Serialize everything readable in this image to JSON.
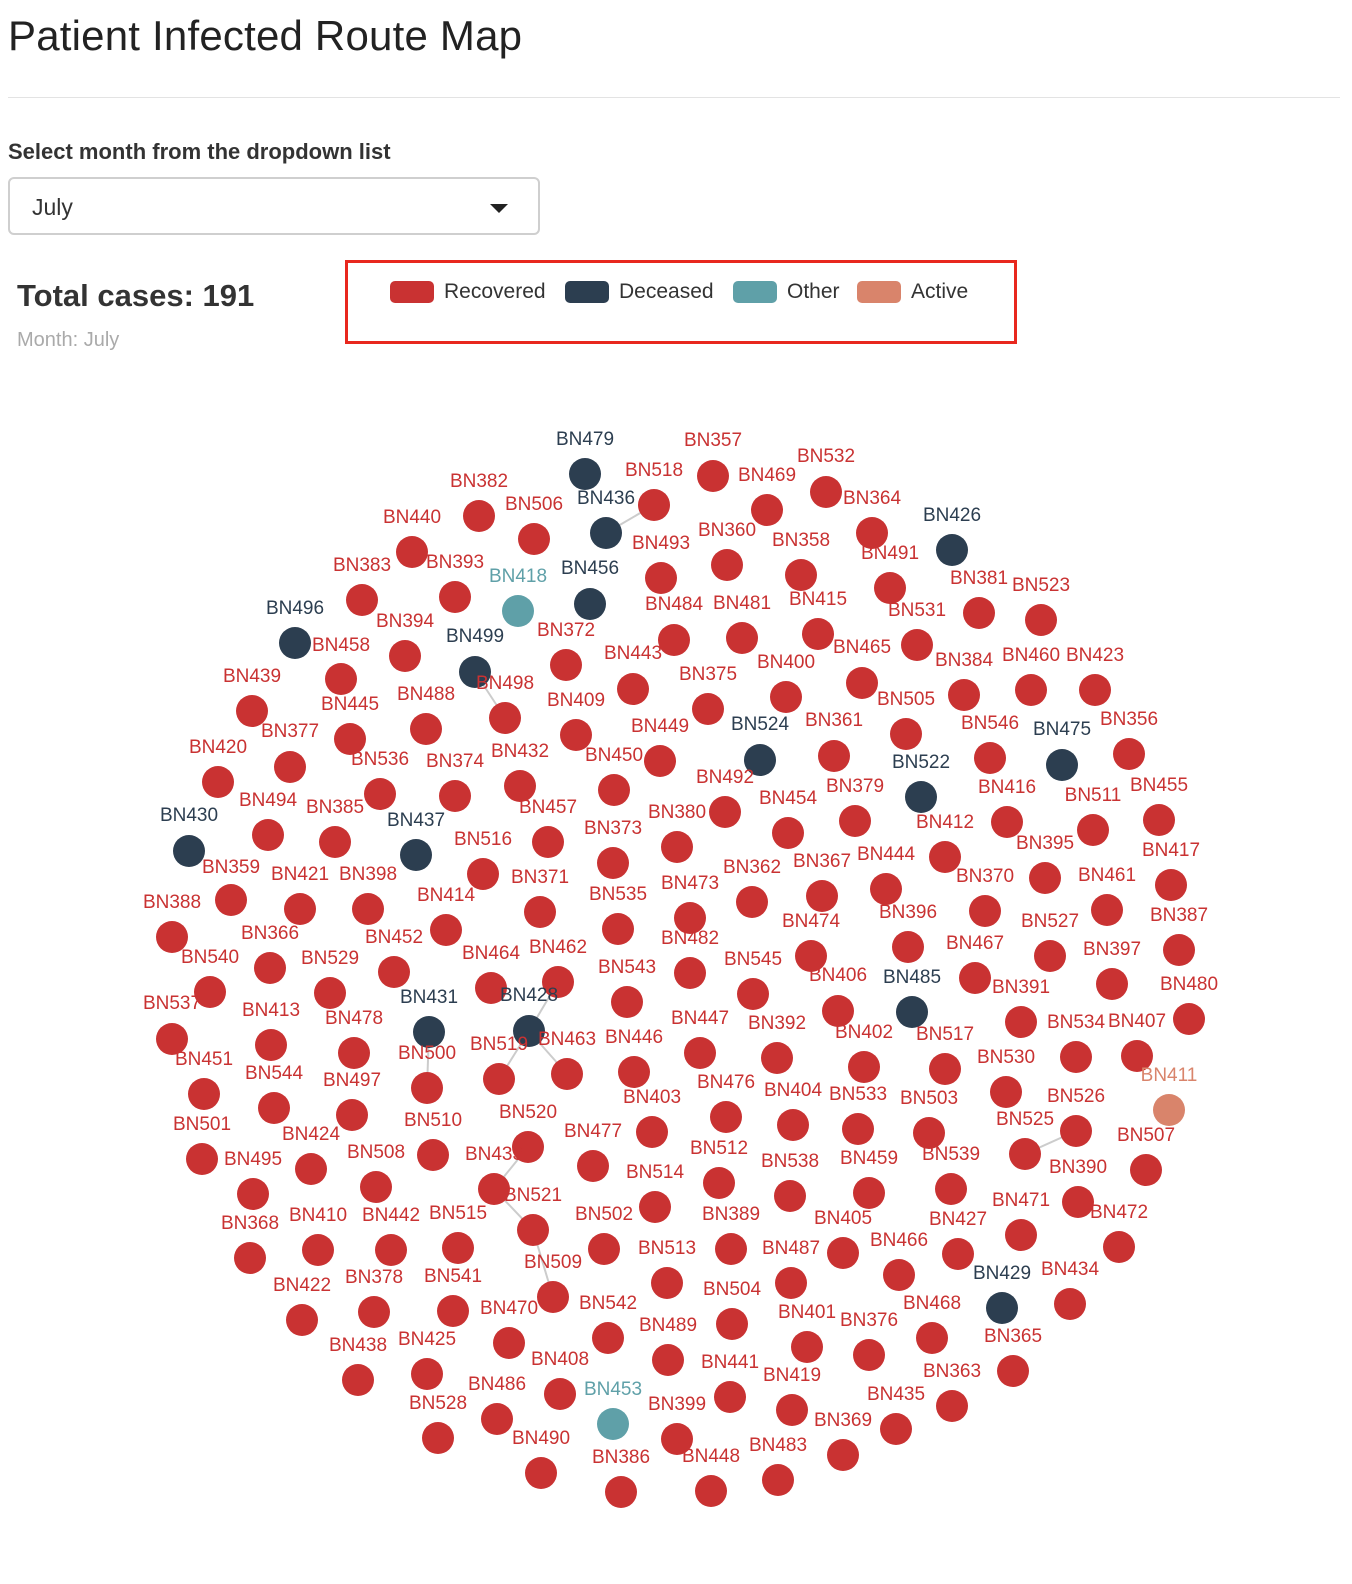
{
  "page": {
    "title": "Patient Infected Route Map",
    "dropdown_label": "Select month from the dropdown list",
    "selected_month": "July"
  },
  "summary": {
    "total_cases": "Total cases: 191",
    "month_caption": "Month: July"
  },
  "legend": [
    {
      "label": "Recovered",
      "color": "#c93232"
    },
    {
      "label": "Deceased",
      "color": "#2c3e50"
    },
    {
      "label": "Other",
      "color": "#5fa0a8"
    },
    {
      "label": "Active",
      "color": "#d9846b"
    }
  ],
  "network": {
    "nodes": [
      {
        "id": "BN479",
        "status": "Deceased"
      },
      {
        "id": "BN357",
        "status": "Recovered"
      },
      {
        "id": "BN532",
        "status": "Recovered"
      },
      {
        "id": "BN518",
        "status": "Recovered"
      },
      {
        "id": "BN469",
        "status": "Recovered"
      },
      {
        "id": "BN382",
        "status": "Recovered"
      },
      {
        "id": "BN506",
        "status": "Recovered"
      },
      {
        "id": "BN436",
        "status": "Deceased"
      },
      {
        "id": "BN364",
        "status": "Recovered"
      },
      {
        "id": "BN440",
        "status": "Recovered"
      },
      {
        "id": "BN426",
        "status": "Deceased"
      },
      {
        "id": "BN493",
        "status": "Recovered"
      },
      {
        "id": "BN360",
        "status": "Recovered"
      },
      {
        "id": "BN358",
        "status": "Recovered"
      },
      {
        "id": "BN491",
        "status": "Recovered"
      },
      {
        "id": "BN383",
        "status": "Recovered"
      },
      {
        "id": "BN393",
        "status": "Recovered"
      },
      {
        "id": "BN418",
        "status": "Other"
      },
      {
        "id": "BN456",
        "status": "Deceased"
      },
      {
        "id": "BN381",
        "status": "Recovered"
      },
      {
        "id": "BN523",
        "status": "Recovered"
      },
      {
        "id": "BN496",
        "status": "Deceased"
      },
      {
        "id": "BN484",
        "status": "Recovered"
      },
      {
        "id": "BN481",
        "status": "Recovered"
      },
      {
        "id": "BN415",
        "status": "Recovered"
      },
      {
        "id": "BN531",
        "status": "Recovered"
      },
      {
        "id": "BN394",
        "status": "Recovered"
      },
      {
        "id": "BN372",
        "status": "Recovered"
      },
      {
        "id": "BN499",
        "status": "Deceased"
      },
      {
        "id": "BN458",
        "status": "Recovered"
      },
      {
        "id": "BN443",
        "status": "Recovered"
      },
      {
        "id": "BN465",
        "status": "Recovered"
      },
      {
        "id": "BN400",
        "status": "Recovered"
      },
      {
        "id": "BN384",
        "status": "Recovered"
      },
      {
        "id": "BN460",
        "status": "Recovered"
      },
      {
        "id": "BN423",
        "status": "Recovered"
      },
      {
        "id": "BN439",
        "status": "Recovered"
      },
      {
        "id": "BN498",
        "status": "Recovered"
      },
      {
        "id": "BN375",
        "status": "Recovered"
      },
      {
        "id": "BN488",
        "status": "Recovered"
      },
      {
        "id": "BN445",
        "status": "Recovered"
      },
      {
        "id": "BN409",
        "status": "Recovered"
      },
      {
        "id": "BN505",
        "status": "Recovered"
      },
      {
        "id": "BN377",
        "status": "Recovered"
      },
      {
        "id": "BN449",
        "status": "Recovered"
      },
      {
        "id": "BN524",
        "status": "Deceased"
      },
      {
        "id": "BN361",
        "status": "Recovered"
      },
      {
        "id": "BN546",
        "status": "Recovered"
      },
      {
        "id": "BN475",
        "status": "Deceased"
      },
      {
        "id": "BN356",
        "status": "Recovered"
      },
      {
        "id": "BN420",
        "status": "Recovered"
      },
      {
        "id": "BN536",
        "status": "Recovered"
      },
      {
        "id": "BN374",
        "status": "Recovered"
      },
      {
        "id": "BN432",
        "status": "Recovered"
      },
      {
        "id": "BN450",
        "status": "Recovered"
      },
      {
        "id": "BN522",
        "status": "Deceased"
      },
      {
        "id": "BN492",
        "status": "Recovered"
      },
      {
        "id": "BN379",
        "status": "Recovered"
      },
      {
        "id": "BN416",
        "status": "Recovered"
      },
      {
        "id": "BN455",
        "status": "Recovered"
      },
      {
        "id": "BN494",
        "status": "Recovered"
      },
      {
        "id": "BN385",
        "status": "Recovered"
      },
      {
        "id": "BN457",
        "status": "Recovered"
      },
      {
        "id": "BN454",
        "status": "Recovered"
      },
      {
        "id": "BN511",
        "status": "Recovered"
      },
      {
        "id": "BN430",
        "status": "Deceased"
      },
      {
        "id": "BN437",
        "status": "Deceased"
      },
      {
        "id": "BN380",
        "status": "Recovered"
      },
      {
        "id": "BN412",
        "status": "Recovered"
      },
      {
        "id": "BN516",
        "status": "Recovered"
      },
      {
        "id": "BN373",
        "status": "Recovered"
      },
      {
        "id": "BN395",
        "status": "Recovered"
      },
      {
        "id": "BN417",
        "status": "Recovered"
      },
      {
        "id": "BN359",
        "status": "Recovered"
      },
      {
        "id": "BN444",
        "status": "Recovered"
      },
      {
        "id": "BN367",
        "status": "Recovered"
      },
      {
        "id": "BN362",
        "status": "Recovered"
      },
      {
        "id": "BN421",
        "status": "Recovered"
      },
      {
        "id": "BN398",
        "status": "Recovered"
      },
      {
        "id": "BN371",
        "status": "Recovered"
      },
      {
        "id": "BN370",
        "status": "Recovered"
      },
      {
        "id": "BN461",
        "status": "Recovered"
      },
      {
        "id": "BN414",
        "status": "Recovered"
      },
      {
        "id": "BN535",
        "status": "Recovered"
      },
      {
        "id": "BN473",
        "status": "Recovered"
      },
      {
        "id": "BN388",
        "status": "Recovered"
      },
      {
        "id": "BN396",
        "status": "Recovered"
      },
      {
        "id": "BN474",
        "status": "Recovered"
      },
      {
        "id": "BN527",
        "status": "Recovered"
      },
      {
        "id": "BN387",
        "status": "Recovered"
      },
      {
        "id": "BN366",
        "status": "Recovered"
      },
      {
        "id": "BN452",
        "status": "Recovered"
      },
      {
        "id": "BN482",
        "status": "Recovered"
      },
      {
        "id": "BN467",
        "status": "Recovered"
      },
      {
        "id": "BN540",
        "status": "Recovered"
      },
      {
        "id": "BN464",
        "status": "Recovered"
      },
      {
        "id": "BN462",
        "status": "Recovered"
      },
      {
        "id": "BN397",
        "status": "Recovered"
      },
      {
        "id": "BN529",
        "status": "Recovered"
      },
      {
        "id": "BN545",
        "status": "Recovered"
      },
      {
        "id": "BN543",
        "status": "Recovered"
      },
      {
        "id": "BN406",
        "status": "Recovered"
      },
      {
        "id": "BN485",
        "status": "Deceased"
      },
      {
        "id": "BN391",
        "status": "Recovered"
      },
      {
        "id": "BN480",
        "status": "Recovered"
      },
      {
        "id": "BN537",
        "status": "Recovered"
      },
      {
        "id": "BN413",
        "status": "Recovered"
      },
      {
        "id": "BN431",
        "status": "Deceased"
      },
      {
        "id": "BN428",
        "status": "Deceased"
      },
      {
        "id": "BN478",
        "status": "Recovered"
      },
      {
        "id": "BN447",
        "status": "Recovered"
      },
      {
        "id": "BN392",
        "status": "Recovered"
      },
      {
        "id": "BN534",
        "status": "Recovered"
      },
      {
        "id": "BN407",
        "status": "Recovered"
      },
      {
        "id": "BN463",
        "status": "Recovered"
      },
      {
        "id": "BN446",
        "status": "Recovered"
      },
      {
        "id": "BN402",
        "status": "Recovered"
      },
      {
        "id": "BN517",
        "status": "Recovered"
      },
      {
        "id": "BN500",
        "status": "Recovered"
      },
      {
        "id": "BN519",
        "status": "Recovered"
      },
      {
        "id": "BN451",
        "status": "Recovered"
      },
      {
        "id": "BN530",
        "status": "Recovered"
      },
      {
        "id": "BN544",
        "status": "Recovered"
      },
      {
        "id": "BN497",
        "status": "Recovered"
      },
      {
        "id": "BN411",
        "status": "Active"
      },
      {
        "id": "BN476",
        "status": "Recovered"
      },
      {
        "id": "BN404",
        "status": "Recovered"
      },
      {
        "id": "BN533",
        "status": "Recovered"
      },
      {
        "id": "BN403",
        "status": "Recovered"
      },
      {
        "id": "BN503",
        "status": "Recovered"
      },
      {
        "id": "BN526",
        "status": "Recovered"
      },
      {
        "id": "BN501",
        "status": "Recovered"
      },
      {
        "id": "BN510",
        "status": "Recovered"
      },
      {
        "id": "BN520",
        "status": "Recovered"
      },
      {
        "id": "BN525",
        "status": "Recovered"
      },
      {
        "id": "BN424",
        "status": "Recovered"
      },
      {
        "id": "BN477",
        "status": "Recovered"
      },
      {
        "id": "BN507",
        "status": "Recovered"
      },
      {
        "id": "BN508",
        "status": "Recovered"
      },
      {
        "id": "BN512",
        "status": "Recovered"
      },
      {
        "id": "BN538",
        "status": "Recovered"
      },
      {
        "id": "BN459",
        "status": "Recovered"
      },
      {
        "id": "BN539",
        "status": "Recovered"
      },
      {
        "id": "BN495",
        "status": "Recovered"
      },
      {
        "id": "BN433",
        "status": "Recovered"
      },
      {
        "id": "BN390",
        "status": "Recovered"
      },
      {
        "id": "BN514",
        "status": "Recovered"
      },
      {
        "id": "BN521",
        "status": "Recovered"
      },
      {
        "id": "BN471",
        "status": "Recovered"
      },
      {
        "id": "BN368",
        "status": "Recovered"
      },
      {
        "id": "BN410",
        "status": "Recovered"
      },
      {
        "id": "BN442",
        "status": "Recovered"
      },
      {
        "id": "BN515",
        "status": "Recovered"
      },
      {
        "id": "BN502",
        "status": "Recovered"
      },
      {
        "id": "BN389",
        "status": "Recovered"
      },
      {
        "id": "BN405",
        "status": "Recovered"
      },
      {
        "id": "BN427",
        "status": "Recovered"
      },
      {
        "id": "BN472",
        "status": "Recovered"
      },
      {
        "id": "BN509",
        "status": "Recovered"
      },
      {
        "id": "BN513",
        "status": "Recovered"
      },
      {
        "id": "BN487",
        "status": "Recovered"
      },
      {
        "id": "BN466",
        "status": "Recovered"
      },
      {
        "id": "BN422",
        "status": "Recovered"
      },
      {
        "id": "BN378",
        "status": "Recovered"
      },
      {
        "id": "BN541",
        "status": "Recovered"
      },
      {
        "id": "BN429",
        "status": "Deceased"
      },
      {
        "id": "BN434",
        "status": "Recovered"
      },
      {
        "id": "BN504",
        "status": "Recovered"
      },
      {
        "id": "BN470",
        "status": "Recovered"
      },
      {
        "id": "BN542",
        "status": "Recovered"
      },
      {
        "id": "BN401",
        "status": "Recovered"
      },
      {
        "id": "BN468",
        "status": "Recovered"
      },
      {
        "id": "BN376",
        "status": "Recovered"
      },
      {
        "id": "BN489",
        "status": "Recovered"
      },
      {
        "id": "BN438",
        "status": "Recovered"
      },
      {
        "id": "BN425",
        "status": "Recovered"
      },
      {
        "id": "BN365",
        "status": "Recovered"
      },
      {
        "id": "BN408",
        "status": "Recovered"
      },
      {
        "id": "BN441",
        "status": "Recovered"
      },
      {
        "id": "BN419",
        "status": "Recovered"
      },
      {
        "id": "BN363",
        "status": "Recovered"
      },
      {
        "id": "BN486",
        "status": "Recovered"
      },
      {
        "id": "BN453",
        "status": "Other"
      },
      {
        "id": "BN435",
        "status": "Recovered"
      },
      {
        "id": "BN528",
        "status": "Recovered"
      },
      {
        "id": "BN399",
        "status": "Recovered"
      },
      {
        "id": "BN369",
        "status": "Recovered"
      },
      {
        "id": "BN490",
        "status": "Recovered"
      },
      {
        "id": "BN483",
        "status": "Recovered"
      },
      {
        "id": "BN386",
        "status": "Recovered"
      },
      {
        "id": "BN448",
        "status": "Recovered"
      }
    ],
    "edges": [
      [
        "BN436",
        "BN518"
      ],
      [
        "BN499",
        "BN498"
      ],
      [
        "BN428",
        "BN463"
      ],
      [
        "BN428",
        "BN519"
      ],
      [
        "BN428",
        "BN462"
      ],
      [
        "BN431",
        "BN500"
      ],
      [
        "BN433",
        "BN521"
      ],
      [
        "BN433",
        "BN520"
      ],
      [
        "BN521",
        "BN509"
      ],
      [
        "BN525",
        "BN526"
      ]
    ]
  }
}
